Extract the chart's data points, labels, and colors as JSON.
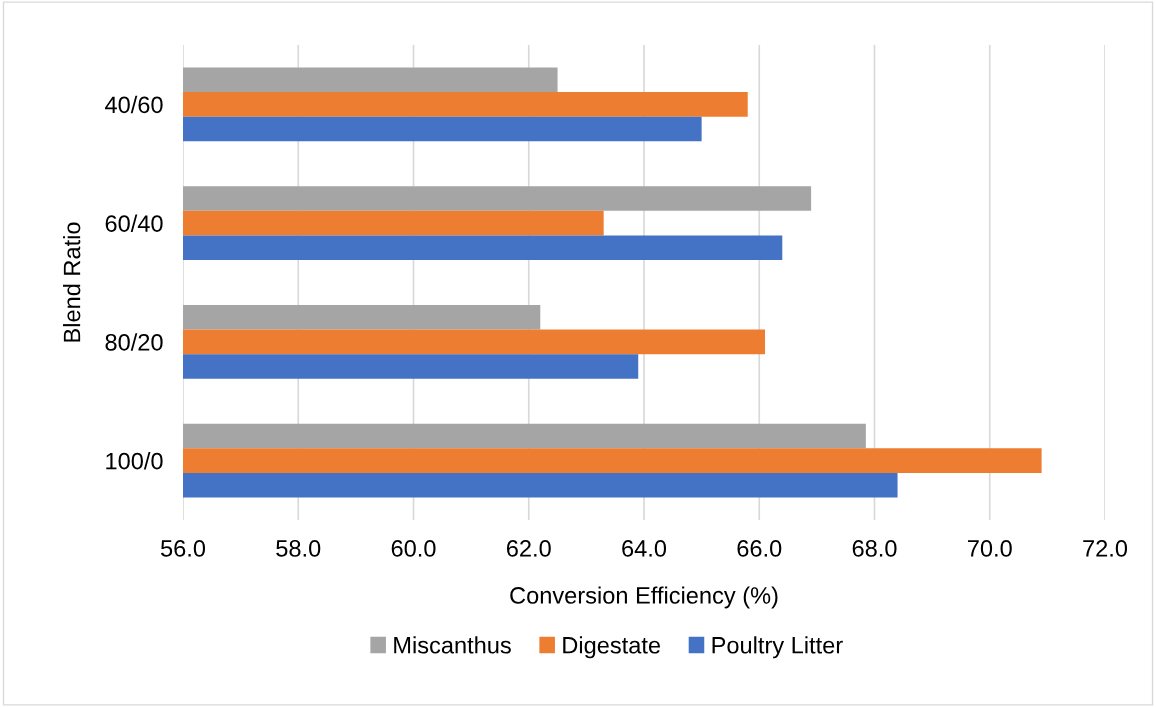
{
  "chart_data": {
    "type": "bar",
    "orientation": "horizontal",
    "xlabel": "Conversion Efficiency (%)",
    "ylabel": "Blend Ratio",
    "categories": [
      "40/60",
      "60/40",
      "80/20",
      "100/0"
    ],
    "series": [
      {
        "name": "Miscanthus",
        "color": "#a5a5a5",
        "values": [
          62.5,
          66.9,
          62.2,
          67.85
        ]
      },
      {
        "name": "Digestate",
        "color": "#ed7d31",
        "values": [
          65.8,
          63.3,
          66.1,
          70.9
        ]
      },
      {
        "name": "Poultry Litter",
        "color": "#4472c4",
        "values": [
          65.0,
          66.4,
          63.9,
          68.4
        ]
      }
    ],
    "xlim": [
      56,
      72
    ],
    "xticks": [
      {
        "value": 56,
        "label": "56.0"
      },
      {
        "value": 58,
        "label": "58.0"
      },
      {
        "value": 60,
        "label": "60.0"
      },
      {
        "value": 62,
        "label": "62.0"
      },
      {
        "value": 64,
        "label": "64.0"
      },
      {
        "value": 66,
        "label": "66.0"
      },
      {
        "value": 68,
        "label": "68.0"
      },
      {
        "value": 70,
        "label": "70.0"
      },
      {
        "value": 72,
        "label": "72.0"
      }
    ],
    "grid": "x",
    "legend": "bottom"
  }
}
